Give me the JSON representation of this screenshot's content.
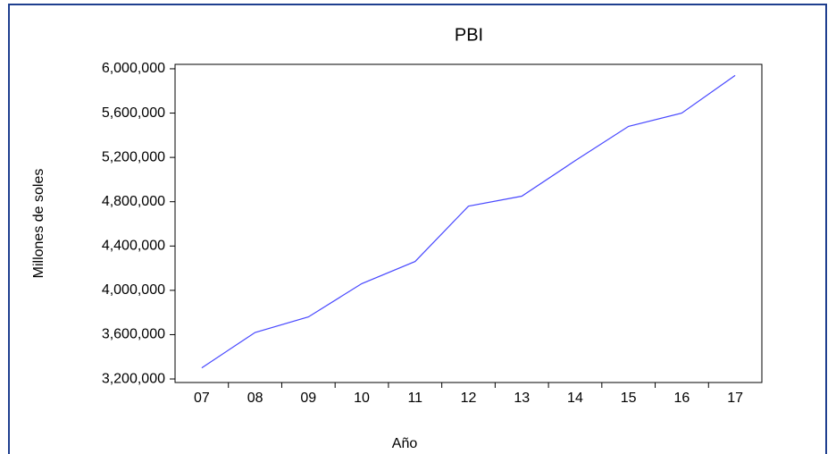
{
  "chart_data": {
    "type": "line",
    "title": "PBI",
    "xlabel": "Año",
    "ylabel": "Millones de soles",
    "categories": [
      "07",
      "08",
      "09",
      "10",
      "11",
      "12",
      "13",
      "14",
      "15",
      "16",
      "17"
    ],
    "series": [
      {
        "name": "PBI",
        "color": "#4848ff",
        "values": [
          3300000,
          3620000,
          3760000,
          4060000,
          4260000,
          4760000,
          4850000,
          5170000,
          5480000,
          5600000,
          5940000
        ]
      }
    ],
    "ylim": [
      3168000,
      6040000
    ],
    "yticks": [
      {
        "value": 3200000,
        "label": "3,200,000"
      },
      {
        "value": 3600000,
        "label": "3,600,000"
      },
      {
        "value": 4000000,
        "label": "4,000,000"
      },
      {
        "value": 4400000,
        "label": "4,400,000"
      },
      {
        "value": 4800000,
        "label": "4,800,000"
      },
      {
        "value": 5200000,
        "label": "5,200,000"
      },
      {
        "value": 5600000,
        "label": "5,600,000"
      },
      {
        "value": 6000000,
        "label": "6,000,000"
      }
    ],
    "grid": false
  }
}
